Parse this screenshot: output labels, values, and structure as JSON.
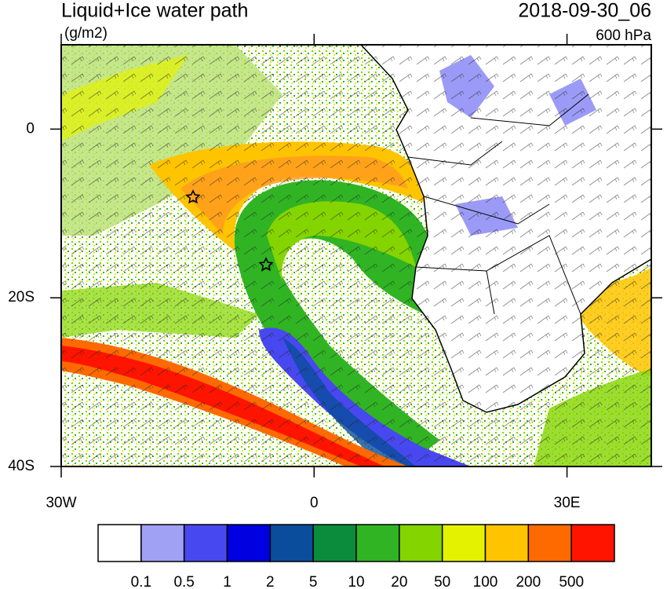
{
  "header": {
    "title": "Liquid+Ice water path",
    "units": "(g/m2)",
    "valid_time": "2018-09-30_06",
    "level": "600 hPa"
  },
  "map": {
    "lon_range": [
      -30,
      40
    ],
    "lat_range": [
      -40,
      10
    ],
    "lon_ticks": [
      {
        "value": -30,
        "label": "30W"
      },
      0,
      {
        "value": 30,
        "label": "30E"
      }
    ],
    "lat_ticks": [
      0,
      {
        "value": -20,
        "label": "20S"
      },
      {
        "value": -40,
        "label": "40S"
      }
    ]
  },
  "colorbar": {
    "levels": [
      0.1,
      0.5,
      1,
      2,
      5,
      10,
      20,
      50,
      100,
      200,
      500
    ],
    "colors": [
      "#ffffff",
      "#a0a0f5",
      "#4848f0",
      "#0000e0",
      "#0a4d9c",
      "#0a8c3c",
      "#30b424",
      "#84d400",
      "#e4f200",
      "#ffc400",
      "#ff6a00",
      "#ff1400"
    ]
  }
}
